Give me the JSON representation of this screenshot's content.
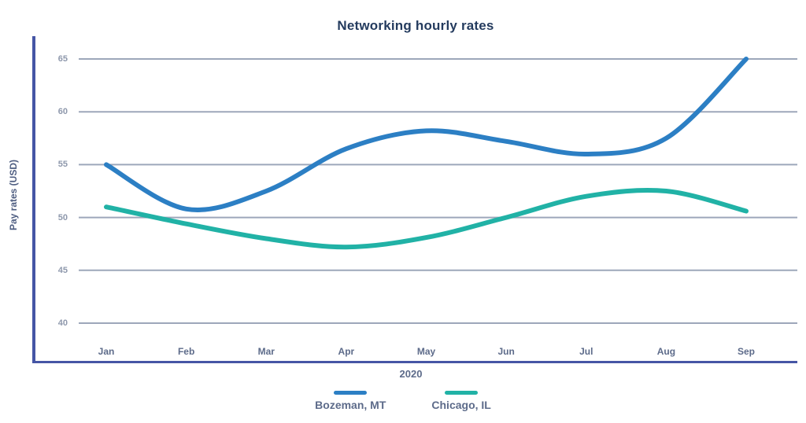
{
  "chart_data": {
    "type": "line",
    "title": "Networking hourly rates",
    "xlabel": "2020",
    "ylabel": "Pay rates (USD)",
    "categories": [
      "Jan",
      "Feb",
      "Mar",
      "Apr",
      "May",
      "Jun",
      "Jul",
      "Aug",
      "Sep"
    ],
    "y_ticks": [
      65,
      60,
      55,
      50,
      45,
      40
    ],
    "ylim": [
      40,
      65
    ],
    "grid": "horizontal-only",
    "legend_position": "bottom-center",
    "series": [
      {
        "name": "Bozeman, MT",
        "color": "#2c7fc4",
        "values": [
          55,
          50.8,
          52.5,
          56.5,
          58.2,
          57.2,
          56,
          57.5,
          65
        ]
      },
      {
        "name": "Chicago, IL",
        "color": "#21b2a6",
        "values": [
          51,
          49.4,
          48,
          47.2,
          48.1,
          50,
          52,
          52.5,
          50.6
        ]
      }
    ],
    "colors": {
      "axis": "#4656a5",
      "gridline": "#9da7ba",
      "title": "#243b5e",
      "y_tick_label": "#8e98ac",
      "x_tick_label": "#5d6b8a",
      "axis_title": "#4d5c80",
      "legend_label": "#5d6b8a"
    }
  }
}
